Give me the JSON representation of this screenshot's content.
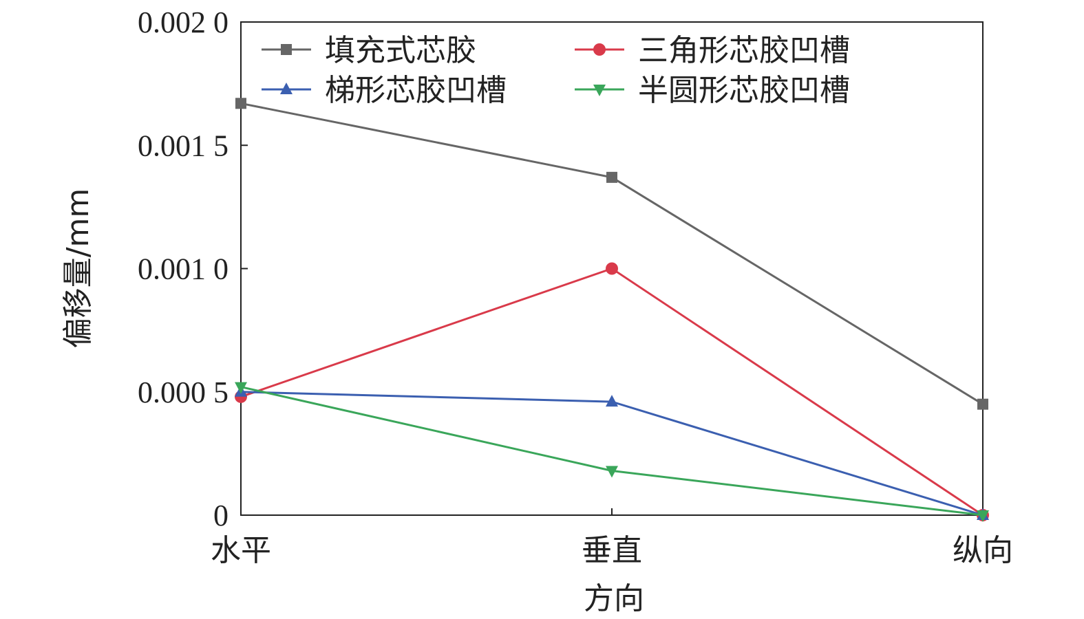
{
  "chart_data": {
    "type": "line",
    "categories": [
      "水平",
      "垂直",
      "纵向"
    ],
    "xlabel": "方向",
    "ylabel": "偏移量/mm",
    "ylim": [
      0,
      0.002
    ],
    "yticks": [
      {
        "value": 0,
        "label": "0"
      },
      {
        "value": 0.0005,
        "label": "0.000 5"
      },
      {
        "value": 0.001,
        "label": "0.001 0"
      },
      {
        "value": 0.0015,
        "label": "0.001 5"
      },
      {
        "value": 0.002,
        "label": "0.002 0"
      }
    ],
    "legend_position": "top, two columns",
    "series": [
      {
        "name": "填充式芯胶",
        "color": "#666666",
        "marker": "square",
        "values": [
          0.00167,
          0.00137,
          0.00045
        ]
      },
      {
        "name": "三角形芯胶凹槽",
        "color": "#d93a4a",
        "marker": "circle",
        "values": [
          0.00048,
          0.001,
          0.0
        ]
      },
      {
        "name": "梯形芯胶凹槽",
        "color": "#3b5fb0",
        "marker": "triangle-up",
        "values": [
          0.0005,
          0.00046,
          0.0
        ]
      },
      {
        "name": "半圆形芯胶凹槽",
        "color": "#3aa65a",
        "marker": "triangle-down",
        "values": [
          0.00052,
          0.00018,
          0.0
        ]
      }
    ]
  }
}
